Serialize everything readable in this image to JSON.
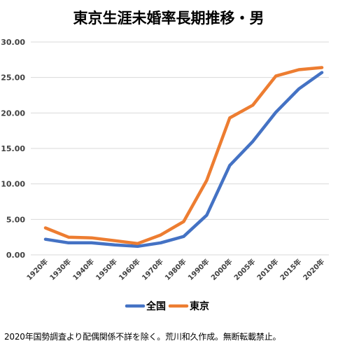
{
  "chart_data": {
    "type": "line",
    "title": "東京生涯未婚率長期推移・男",
    "categories": [
      "1920年",
      "1930年",
      "1940年",
      "1950年",
      "1960年",
      "1970年",
      "1980年",
      "1990年",
      "2000年",
      "2005年",
      "2010年",
      "2015年",
      "2020年"
    ],
    "ylim": [
      0,
      30
    ],
    "yticks": [
      "0.00",
      "5.00",
      "10.00",
      "15.00",
      "20.00",
      "25.00",
      "30.00"
    ],
    "grid": true,
    "legend_position": "bottom",
    "series": [
      {
        "name": "全国",
        "color": "#4472C4",
        "values": [
          2.2,
          1.7,
          1.7,
          1.4,
          1.2,
          1.7,
          2.6,
          5.6,
          12.6,
          16.0,
          20.1,
          23.4,
          25.7
        ]
      },
      {
        "name": "東京",
        "color": "#ED7D31",
        "values": [
          3.8,
          2.5,
          2.4,
          2.0,
          1.6,
          2.8,
          4.7,
          10.5,
          19.3,
          21.1,
          25.2,
          26.1,
          26.4
        ]
      }
    ]
  },
  "footnote": "2020年国勢調査より配偶関係不詳を除く。荒川和久作成。無断転載禁止。"
}
